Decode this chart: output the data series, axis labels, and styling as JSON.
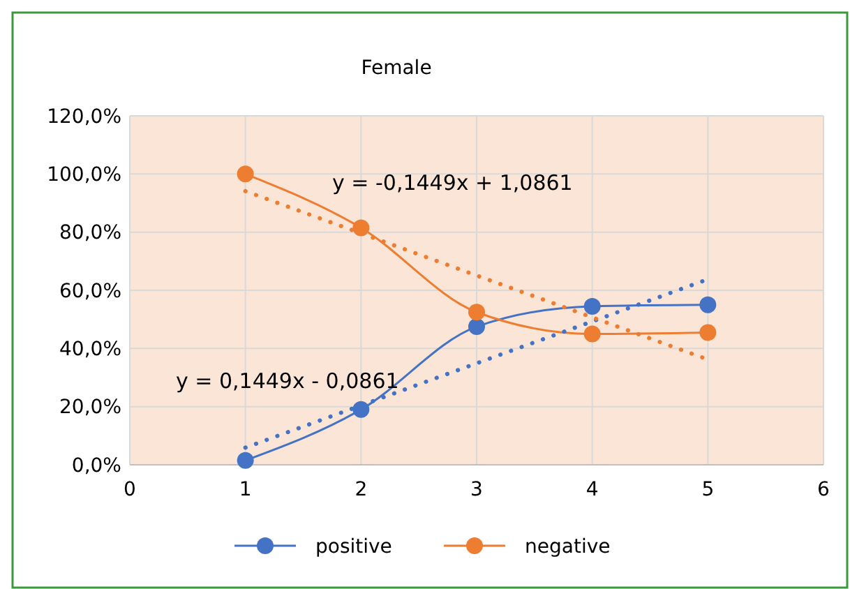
{
  "chart_data": {
    "type": "line",
    "title": "Female",
    "x": [
      1,
      2,
      3,
      4,
      5
    ],
    "series": [
      {
        "name": "positive",
        "color": "#4472c4",
        "values": [
          1.5,
          19,
          47.5,
          54.5,
          55
        ]
      },
      {
        "name": "negative",
        "color": "#ed7d31",
        "values": [
          100,
          81.5,
          52.5,
          45,
          45.5
        ]
      },
      {
        "type": "line",
        "color": "#4472c4",
        "values": [
          5.9,
          20.4,
          34.9,
          49.3,
          63.8
        ],
        "marker": "none",
        "line_style": "dotted"
      },
      {
        "type": "line",
        "color": "#ed7d31",
        "values": [
          94.1,
          79.6,
          65.1,
          50.7,
          36.2
        ],
        "marker": "none",
        "line_style": "dotted"
      }
    ],
    "marker": "circle",
    "line_style": "solid",
    "xlim": [
      0,
      6
    ],
    "xticks": [
      0,
      1,
      2,
      3,
      4,
      5,
      6
    ],
    "ylim": [
      0,
      120
    ],
    "yticks": [
      {
        "value": 0,
        "label": "0,0%"
      },
      {
        "value": 20,
        "label": "20,0%"
      },
      {
        "value": 40,
        "label": "40,0%"
      },
      {
        "value": 60,
        "label": "60,0%"
      },
      {
        "value": 80,
        "label": "80,0%"
      },
      {
        "value": 100,
        "label": "100,0%"
      },
      {
        "value": 120,
        "label": "120,0%"
      }
    ],
    "grid": true,
    "legend": "bottom",
    "annotations": [
      "y = -0,1449x + 1,0861",
      "y = 0,1449x - 0,0861"
    ]
  }
}
